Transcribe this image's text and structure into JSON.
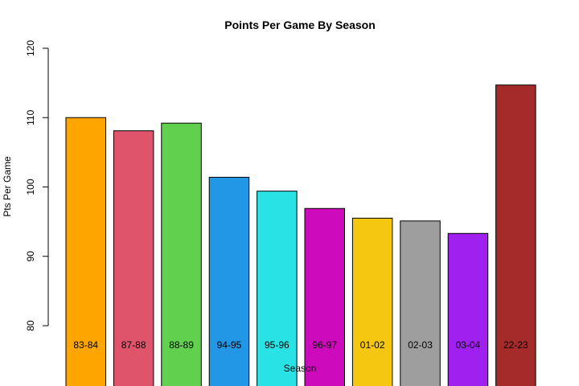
{
  "chart_data": {
    "type": "bar",
    "title": "Points Per Game By Season",
    "xlabel": "Season",
    "ylabel": "Pts Per Game",
    "categories": [
      "83-84",
      "87-88",
      "88-89",
      "94-95",
      "95-96",
      "96-97",
      "01-02",
      "02-03",
      "03-04",
      "22-23"
    ],
    "values": [
      110.0,
      108.1,
      109.2,
      101.4,
      99.4,
      96.9,
      95.5,
      95.1,
      93.3,
      114.7
    ],
    "colors": [
      "#FFA500",
      "#DF536B",
      "#61D04F",
      "#2297E6",
      "#28E2E5",
      "#CD0BBC",
      "#F5C710",
      "#9E9E9E",
      "#A020F0",
      "#A52A2A"
    ],
    "ylim": [
      80,
      120
    ],
    "yticks": [
      80,
      90,
      100,
      110,
      120
    ],
    "grid": false,
    "legend": "none"
  }
}
